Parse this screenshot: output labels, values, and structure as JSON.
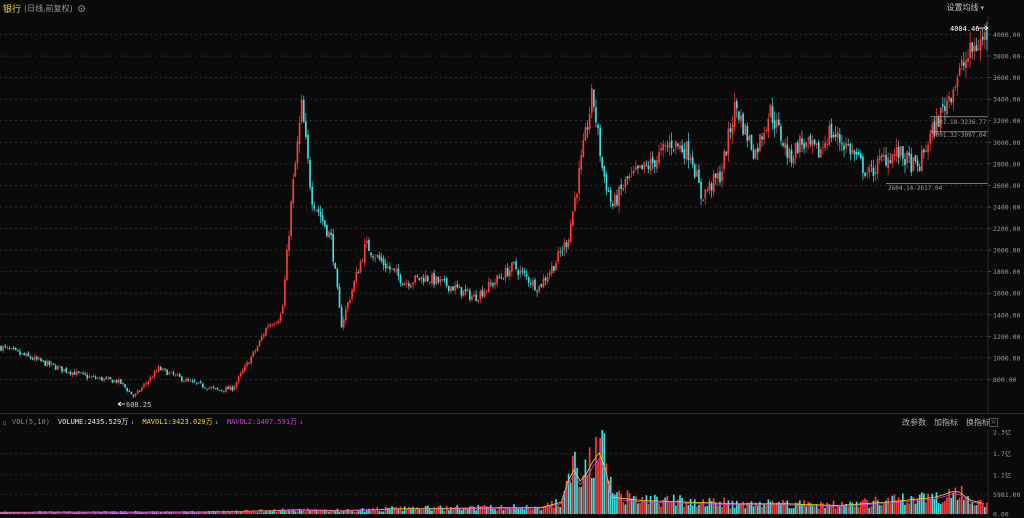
{
  "header": {
    "title": "银行",
    "subtitle": "(日线,前复权)",
    "settings_label": "设置均线"
  },
  "main_chart": {
    "y_axis_ticks": [
      "4000.00",
      "3800.00",
      "3600.00",
      "3400.00",
      "3200.00",
      "3000.00",
      "2800.00",
      "2600.00",
      "2400.00",
      "2200.00",
      "2000.00",
      "1800.00",
      "1600.00",
      "1400.00",
      "1200.00",
      "1000.00",
      "800.00"
    ],
    "annotations": {
      "high_label": "4004.46",
      "low_label": "608.25",
      "support_1": "3201.18-3236.77",
      "support_2": "3091.32-3097.04",
      "support_3": "2604.14-2617.04"
    },
    "colors": {
      "up": "#ff3b3b",
      "down": "#3ee0e0",
      "grid": "#3a3a3a",
      "axis_text": "#9a9a9a"
    }
  },
  "volume_panel": {
    "title": "VOL(5,10)",
    "volume_label": "VOLUME:2435.529万",
    "mavol1_label": "MAVOL1:3423.029万",
    "mavol2_label": "MAVOL2:3407.591万",
    "buttons": [
      "改参数",
      "加指标",
      "换指标"
    ],
    "close_label": "×",
    "y_axis_ticks": [
      "2.3亿",
      "1.7亿",
      "1.1亿",
      "5981.00",
      "0.00"
    ],
    "colors": {
      "volume": "#e6e6e6",
      "mavol1": "#f0d030",
      "mavol2": "#d040d0",
      "arrow": "#5aa0ff"
    }
  },
  "chart_data": {
    "type": "candlestick",
    "price_anchors_x_frac": [
      0,
      0.03,
      0.06,
      0.09,
      0.12,
      0.135,
      0.16,
      0.19,
      0.22,
      0.235,
      0.26,
      0.27,
      0.285,
      0.295,
      0.305,
      0.315,
      0.335,
      0.345,
      0.37,
      0.385,
      0.41,
      0.43,
      0.46,
      0.48,
      0.5,
      0.52,
      0.545,
      0.56,
      0.575,
      0.59,
      0.6,
      0.61,
      0.62,
      0.635,
      0.66,
      0.68,
      0.7,
      0.71,
      0.73,
      0.745,
      0.755,
      0.765,
      0.78,
      0.8,
      0.81,
      0.83,
      0.84,
      0.86,
      0.88,
      0.895,
      0.91,
      0.93,
      0.94,
      0.955,
      0.965,
      0.975,
      0.985,
      1.0
    ],
    "price_anchors": [
      1100,
      1000,
      900,
      820,
      780,
      640,
      900,
      780,
      700,
      720,
      1100,
      1300,
      1400,
      2500,
      3330,
      2500,
      2100,
      1300,
      2050,
      1900,
      1700,
      1750,
      1650,
      1560,
      1700,
      1850,
      1650,
      1850,
      2100,
      2900,
      3450,
      2750,
      2400,
      2650,
      2800,
      3000,
      2900,
      2500,
      2700,
      3350,
      3100,
      2900,
      3300,
      2850,
      3000,
      2900,
      3100,
      2950,
      2700,
      2850,
      2900,
      2750,
      3000,
      3300,
      3500,
      3700,
      3850,
      4000
    ],
    "volume_anchors_x_frac": [
      0,
      0.2,
      0.25,
      0.3,
      0.35,
      0.4,
      0.5,
      0.55,
      0.57,
      0.58,
      0.59,
      0.6,
      0.61,
      0.62,
      0.65,
      0.7,
      0.75,
      0.8,
      0.85,
      0.9,
      0.95,
      0.97,
      0.985,
      1.0
    ],
    "volume_anchors": [
      0.05,
      0.06,
      0.08,
      0.12,
      0.1,
      0.15,
      0.18,
      0.2,
      0.35,
      1.4,
      0.9,
      1.5,
      1.9,
      0.5,
      0.4,
      0.35,
      0.3,
      0.3,
      0.25,
      0.35,
      0.5,
      0.7,
      0.4,
      0.3
    ],
    "price_ylim": [
      600,
      4060
    ],
    "volume_ylim": [
      0,
      2.3
    ],
    "high": 4004.46,
    "low": 608.25
  }
}
